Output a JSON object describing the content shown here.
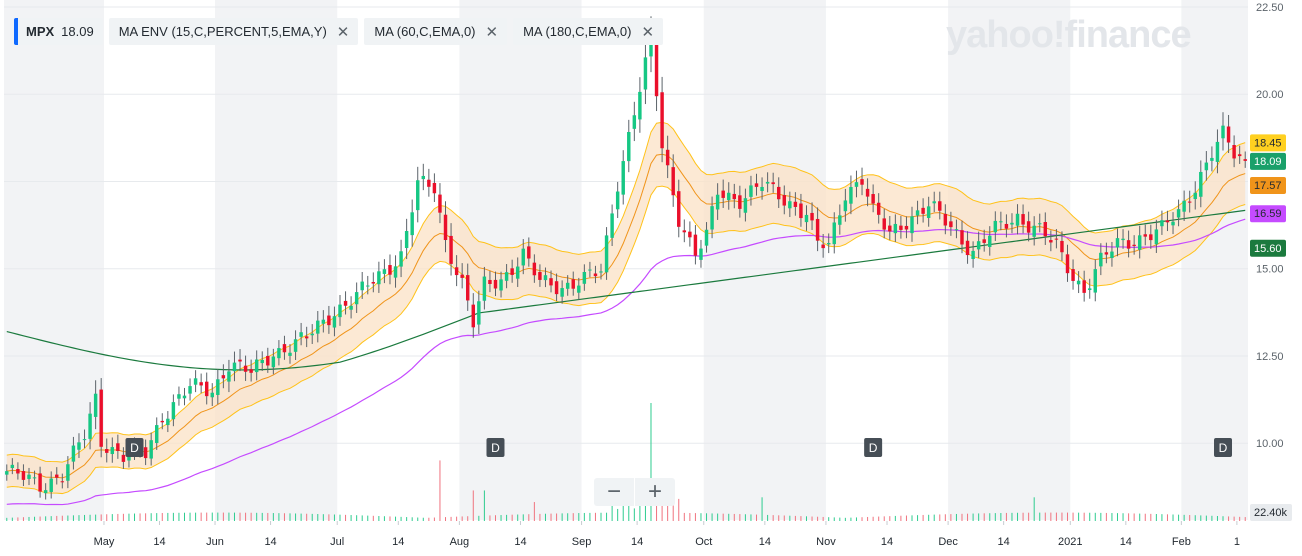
{
  "watermark": "yahoo!finance",
  "indicators": [
    {
      "label": "MPX",
      "value": "18.09",
      "primary": true
    },
    {
      "label": "MA ENV (15,C,PERCENT,5,EMA,Y)"
    },
    {
      "label": "MA (60,C,EMA,0)"
    },
    {
      "label": "MA (180,C,EMA,0)"
    }
  ],
  "close_glyph": "✕",
  "zoom": {
    "minus": "−",
    "plus": "+"
  },
  "chart_data": {
    "type": "candlestick",
    "ticker": "MPX",
    "y_ticks": [
      10.0,
      12.5,
      15.0,
      17.5,
      20.0,
      22.5
    ],
    "y_tick_labels": [
      "10.00",
      "12.50",
      "15.00",
      "",
      "20.00",
      "22.50"
    ],
    "ylim": [
      7.8,
      22.7
    ],
    "x_tick_labels": [
      "May",
      "14",
      "Jun",
      "14",
      "Jul",
      "14",
      "Aug",
      "14",
      "Sep",
      "14",
      "Oct",
      "14",
      "Nov",
      "14",
      "Dec",
      "14",
      "2021",
      "14",
      "Feb",
      "1"
    ],
    "x_tick_index": [
      18,
      28,
      38,
      48,
      60,
      71,
      82,
      93,
      104,
      114,
      126,
      137,
      148,
      159,
      170,
      180,
      192,
      202,
      212,
      222
    ],
    "dividend_markers": [
      {
        "index": 23,
        "label": "D"
      },
      {
        "index": 88,
        "label": "D"
      },
      {
        "index": 156,
        "label": "D"
      },
      {
        "index": 219,
        "label": "D"
      }
    ],
    "last_value_labels": [
      {
        "value": 18.45,
        "text": "18.45",
        "color": "#ffd020",
        "text_color": "#232a31"
      },
      {
        "value": 18.09,
        "text": "18.09",
        "color": "#1aa06a",
        "text_color": "#ffffff"
      },
      {
        "value": 17.57,
        "text": "17.57",
        "color": "#f0941a",
        "text_color": "#232a31"
      },
      {
        "value": 16.59,
        "text": "16.59",
        "color": "#c54bff",
        "text_color": "#232a31"
      },
      {
        "value": 15.6,
        "text": "15.60",
        "color": "#1b7a3e",
        "text_color": "#ffffff"
      }
    ],
    "volume_label": "22.40k",
    "volume_max_k": 22.4,
    "colors": {
      "up": "#16c784",
      "down": "#ea0f2b",
      "env_fill": "#fbe1c6",
      "env_line": "#ffc21a",
      "ema15": "#f0941a",
      "ma60": "#c54bff",
      "ma180": "#1b7a3e",
      "vol_up": "#2ecc8f",
      "vol_down": "#f0737f",
      "grid": "#e7eaed",
      "shade": "#f2f3f5"
    },
    "anchors": [
      [
        0,
        9.2,
        0.35
      ],
      [
        6,
        8.8,
        0.35
      ],
      [
        10,
        9.1,
        0.4
      ],
      [
        14,
        10.2,
        0.5
      ],
      [
        16,
        11.3,
        0.7
      ],
      [
        17,
        10.1,
        0.6
      ],
      [
        21,
        9.6,
        0.4
      ],
      [
        25,
        9.7,
        0.4
      ],
      [
        28,
        10.8,
        0.4
      ],
      [
        33,
        11.6,
        0.4
      ],
      [
        37,
        11.5,
        0.5
      ],
      [
        40,
        12.3,
        0.6
      ],
      [
        44,
        12.0,
        0.5
      ],
      [
        48,
        12.6,
        0.4
      ],
      [
        54,
        13.0,
        0.5
      ],
      [
        59,
        13.8,
        0.5
      ],
      [
        63,
        14.2,
        0.5
      ],
      [
        67,
        14.8,
        0.5
      ],
      [
        71,
        15.4,
        0.6
      ],
      [
        74,
        17.4,
        0.7
      ],
      [
        77,
        17.3,
        0.5
      ],
      [
        79,
        15.8,
        0.7
      ],
      [
        82,
        14.6,
        0.6
      ],
      [
        84,
        13.4,
        0.6
      ],
      [
        86,
        14.5,
        0.5
      ],
      [
        89,
        14.7,
        0.4
      ],
      [
        93,
        15.4,
        0.5
      ],
      [
        96,
        14.6,
        0.4
      ],
      [
        100,
        14.5,
        0.4
      ],
      [
        104,
        14.7,
        0.4
      ],
      [
        107,
        14.9,
        0.4
      ],
      [
        110,
        17.5,
        0.5
      ],
      [
        113,
        19.5,
        0.7
      ],
      [
        116,
        21.5,
        0.9
      ],
      [
        118,
        18.5,
        0.8
      ],
      [
        121,
        16.5,
        0.6
      ],
      [
        124,
        15.4,
        0.5
      ],
      [
        126,
        15.9,
        0.4
      ],
      [
        128,
        17.2,
        0.6
      ],
      [
        132,
        17.0,
        0.5
      ],
      [
        136,
        17.4,
        0.5
      ],
      [
        140,
        17.0,
        0.5
      ],
      [
        144,
        16.6,
        0.5
      ],
      [
        146,
        15.7,
        0.6
      ],
      [
        148,
        15.6,
        0.5
      ],
      [
        151,
        17.2,
        0.6
      ],
      [
        154,
        17.6,
        0.6
      ],
      [
        156,
        16.6,
        0.5
      ],
      [
        159,
        16.0,
        0.5
      ],
      [
        162,
        16.4,
        0.5
      ],
      [
        166,
        16.8,
        0.5
      ],
      [
        170,
        16.2,
        0.5
      ],
      [
        174,
        15.5,
        0.5
      ],
      [
        178,
        16.1,
        0.5
      ],
      [
        182,
        16.5,
        0.5
      ],
      [
        186,
        16.1,
        0.5
      ],
      [
        189,
        15.6,
        0.5
      ],
      [
        192,
        14.8,
        0.5
      ],
      [
        194,
        14.4,
        0.5
      ],
      [
        197,
        15.2,
        0.5
      ],
      [
        200,
        15.7,
        0.5
      ],
      [
        204,
        15.9,
        0.5
      ],
      [
        208,
        16.1,
        0.5
      ],
      [
        211,
        16.6,
        0.5
      ],
      [
        214,
        17.4,
        0.6
      ],
      [
        217,
        18.3,
        0.6
      ],
      [
        219,
        18.8,
        0.7
      ],
      [
        221,
        18.3,
        0.5
      ],
      [
        223,
        18.09,
        0.4
      ]
    ]
  }
}
